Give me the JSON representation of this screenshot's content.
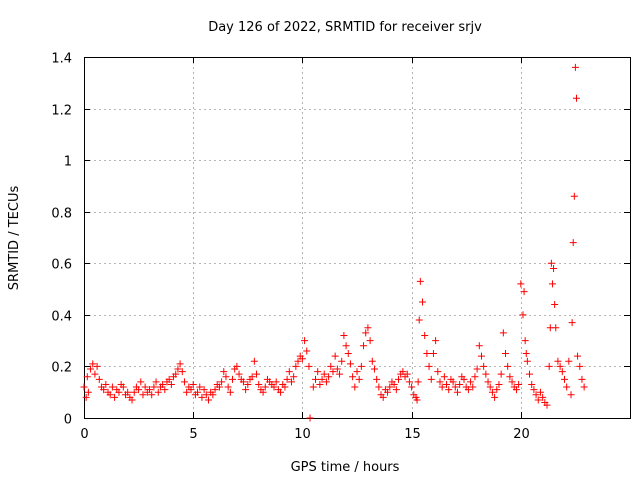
{
  "chart_data": {
    "type": "scatter",
    "title": "Day 126 of 2022, SRMTID for receiver srjv",
    "xlabel": "GPS time / hours",
    "ylabel": "SRMTID / TECUs",
    "xlim": [
      0,
      25
    ],
    "ylim": [
      0,
      1.4
    ],
    "xticks": [
      0,
      5,
      10,
      15,
      20
    ],
    "xtick_labels": [
      "0",
      "5",
      "10",
      "15",
      "20"
    ],
    "yticks": [
      0,
      0.2,
      0.4,
      0.6,
      0.8,
      1.0,
      1.2,
      1.4
    ],
    "ytick_labels": [
      "0",
      "0.2",
      "0.4",
      "0.6",
      "0.8",
      "1",
      "1.2",
      "1.4"
    ],
    "grid": true,
    "marker": "+",
    "color": "#ff0000",
    "series": [
      {
        "name": "srjv",
        "x": [
          0.0,
          0.1,
          0.15,
          0.2,
          0.3,
          0.4,
          0.5,
          0.6,
          0.7,
          0.8,
          0.9,
          1.0,
          1.1,
          1.2,
          1.3,
          1.4,
          1.5,
          1.6,
          1.7,
          1.8,
          1.9,
          2.0,
          2.1,
          2.2,
          2.3,
          2.4,
          2.5,
          2.6,
          2.7,
          2.8,
          2.9,
          3.0,
          3.1,
          3.2,
          3.3,
          3.4,
          3.5,
          3.6,
          3.7,
          3.8,
          3.9,
          4.0,
          4.1,
          4.2,
          4.3,
          4.4,
          4.5,
          4.6,
          4.7,
          4.8,
          4.9,
          5.0,
          5.1,
          5.2,
          5.3,
          5.4,
          5.5,
          5.6,
          5.7,
          5.8,
          5.9,
          6.0,
          6.1,
          6.2,
          6.3,
          6.4,
          6.5,
          6.6,
          6.7,
          6.8,
          6.9,
          7.0,
          7.1,
          7.2,
          7.3,
          7.4,
          7.5,
          7.6,
          7.7,
          7.8,
          7.9,
          8.0,
          8.1,
          8.2,
          8.3,
          8.4,
          8.5,
          8.6,
          8.7,
          8.8,
          8.9,
          9.0,
          9.1,
          9.2,
          9.3,
          9.4,
          9.5,
          9.6,
          9.7,
          9.8,
          9.9,
          10.0,
          10.1,
          10.2,
          10.3,
          10.35,
          10.5,
          10.6,
          10.7,
          10.8,
          10.9,
          11.0,
          11.1,
          11.2,
          11.3,
          11.4,
          11.5,
          11.6,
          11.7,
          11.8,
          11.9,
          12.0,
          12.1,
          12.2,
          12.3,
          12.4,
          12.5,
          12.6,
          12.7,
          12.8,
          12.9,
          13.0,
          13.1,
          13.2,
          13.3,
          13.4,
          13.5,
          13.6,
          13.7,
          13.8,
          13.9,
          14.0,
          14.1,
          14.2,
          14.3,
          14.4,
          14.5,
          14.6,
          14.7,
          14.8,
          14.9,
          15.0,
          15.1,
          15.2,
          15.25,
          15.3,
          15.35,
          15.4,
          15.5,
          15.6,
          15.7,
          15.8,
          15.9,
          16.0,
          16.1,
          16.2,
          16.3,
          16.4,
          16.5,
          16.6,
          16.7,
          16.8,
          16.9,
          17.0,
          17.1,
          17.2,
          17.3,
          17.4,
          17.5,
          17.6,
          17.7,
          17.8,
          17.9,
          18.0,
          18.1,
          18.2,
          18.3,
          18.4,
          18.5,
          18.6,
          18.7,
          18.8,
          18.9,
          19.0,
          19.1,
          19.2,
          19.3,
          19.4,
          19.5,
          19.6,
          19.7,
          19.8,
          19.9,
          20.0,
          20.1,
          20.15,
          20.2,
          20.25,
          20.3,
          20.4,
          20.5,
          20.6,
          20.7,
          20.8,
          20.9,
          21.0,
          21.1,
          21.2,
          21.3,
          21.35,
          21.4,
          21.45,
          21.5,
          21.55,
          21.6,
          21.7,
          21.8,
          21.9,
          22.0,
          22.1,
          22.2,
          22.3,
          22.35,
          22.4,
          22.45,
          22.5,
          22.55,
          22.6,
          22.7,
          22.8,
          22.9
        ],
        "y": [
          0.12,
          0.08,
          0.16,
          0.1,
          0.19,
          0.21,
          0.17,
          0.2,
          0.15,
          0.12,
          0.11,
          0.13,
          0.1,
          0.09,
          0.12,
          0.08,
          0.11,
          0.1,
          0.13,
          0.12,
          0.09,
          0.1,
          0.08,
          0.07,
          0.1,
          0.12,
          0.11,
          0.14,
          0.09,
          0.12,
          0.1,
          0.11,
          0.09,
          0.12,
          0.14,
          0.1,
          0.12,
          0.13,
          0.11,
          0.14,
          0.15,
          0.13,
          0.16,
          0.17,
          0.19,
          0.21,
          0.18,
          0.14,
          0.1,
          0.12,
          0.11,
          0.13,
          0.09,
          0.1,
          0.12,
          0.08,
          0.11,
          0.09,
          0.07,
          0.1,
          0.09,
          0.11,
          0.13,
          0.12,
          0.14,
          0.18,
          0.16,
          0.12,
          0.1,
          0.15,
          0.19,
          0.2,
          0.17,
          0.15,
          0.14,
          0.11,
          0.13,
          0.15,
          0.16,
          0.22,
          0.17,
          0.13,
          0.11,
          0.1,
          0.12,
          0.15,
          0.14,
          0.13,
          0.12,
          0.14,
          0.11,
          0.1,
          0.13,
          0.12,
          0.15,
          0.18,
          0.14,
          0.16,
          0.2,
          0.22,
          0.24,
          0.23,
          0.3,
          0.26,
          0.2,
          0.0,
          0.12,
          0.15,
          0.18,
          0.13,
          0.15,
          0.17,
          0.14,
          0.16,
          0.2,
          0.18,
          0.24,
          0.19,
          0.17,
          0.22,
          0.32,
          0.28,
          0.25,
          0.21,
          0.16,
          0.12,
          0.18,
          0.15,
          0.2,
          0.28,
          0.33,
          0.35,
          0.3,
          0.22,
          0.19,
          0.15,
          0.12,
          0.09,
          0.08,
          0.11,
          0.1,
          0.12,
          0.14,
          0.13,
          0.11,
          0.15,
          0.17,
          0.18,
          0.16,
          0.17,
          0.14,
          0.12,
          0.09,
          0.08,
          0.07,
          0.14,
          0.38,
          0.53,
          0.45,
          0.32,
          0.25,
          0.2,
          0.15,
          0.25,
          0.3,
          0.18,
          0.14,
          0.12,
          0.16,
          0.13,
          0.11,
          0.15,
          0.14,
          0.12,
          0.1,
          0.13,
          0.16,
          0.15,
          0.12,
          0.11,
          0.14,
          0.12,
          0.16,
          0.19,
          0.28,
          0.24,
          0.2,
          0.17,
          0.14,
          0.12,
          0.1,
          0.08,
          0.11,
          0.13,
          0.17,
          0.33,
          0.25,
          0.2,
          0.16,
          0.14,
          0.12,
          0.11,
          0.13,
          0.52,
          0.4,
          0.49,
          0.3,
          0.25,
          0.22,
          0.17,
          0.13,
          0.11,
          0.09,
          0.07,
          0.1,
          0.08,
          0.06,
          0.05,
          0.2,
          0.35,
          0.6,
          0.52,
          0.58,
          0.44,
          0.35,
          0.22,
          0.2,
          0.18,
          0.15,
          0.12,
          0.22,
          0.09,
          0.37,
          0.68,
          0.86,
          1.36,
          1.24,
          0.24,
          0.2,
          0.15,
          0.12
        ]
      }
    ]
  }
}
